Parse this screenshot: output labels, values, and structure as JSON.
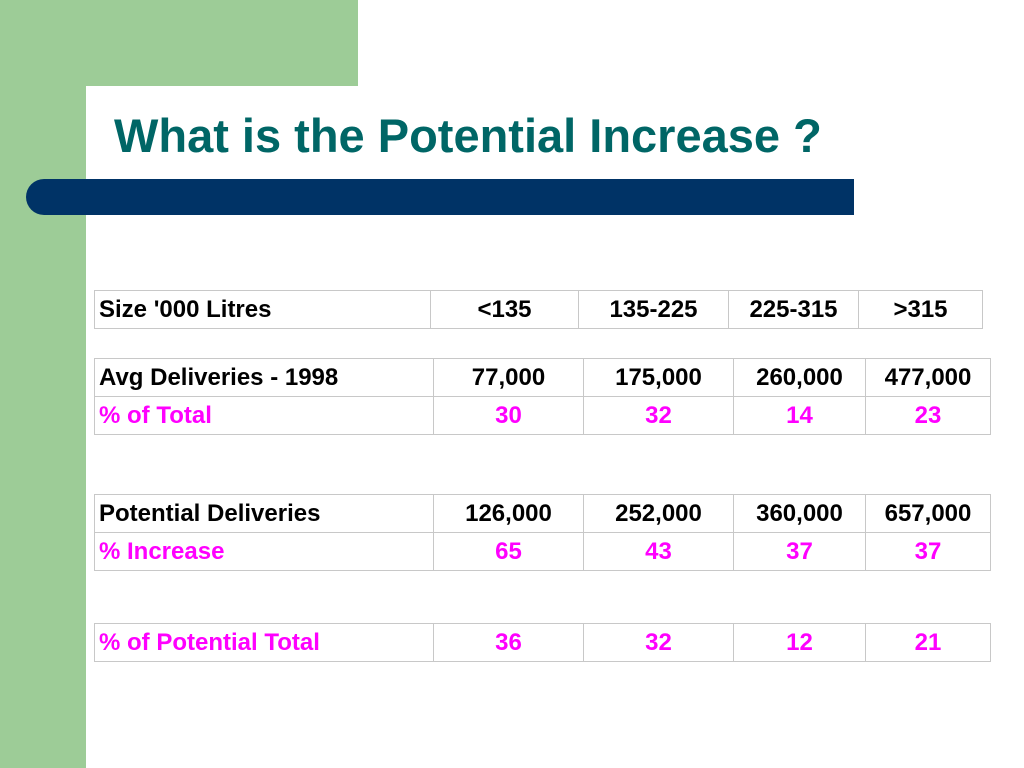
{
  "slide": {
    "title": "What is the Potential Increase ?",
    "colors": {
      "title": "#006666",
      "accent_bar": "#003366",
      "side_band": "#9dcc97",
      "percent_text": "#ff00ff"
    }
  },
  "size_table": {
    "label": "Size '000 Litres",
    "bands": [
      "<135",
      "135-225",
      "225-315",
      ">315"
    ]
  },
  "avg_table": {
    "rows": [
      {
        "label": "Avg Deliveries - 1998",
        "values": [
          "77,000",
          "175,000",
          "260,000",
          "477,000"
        ]
      },
      {
        "label": "% of Total",
        "values": [
          "30",
          "32",
          "14",
          "23"
        ]
      }
    ]
  },
  "potential_table": {
    "rows": [
      {
        "label": "Potential Deliveries",
        "values": [
          "126,000",
          "252,000",
          "360,000",
          "657,000"
        ]
      },
      {
        "label": "% Increase",
        "values": [
          "65",
          "43",
          "37",
          "37"
        ]
      }
    ]
  },
  "share_table": {
    "rows": [
      {
        "label": "% of Potential Total",
        "values": [
          "36",
          "32",
          "12",
          "21"
        ]
      }
    ]
  }
}
